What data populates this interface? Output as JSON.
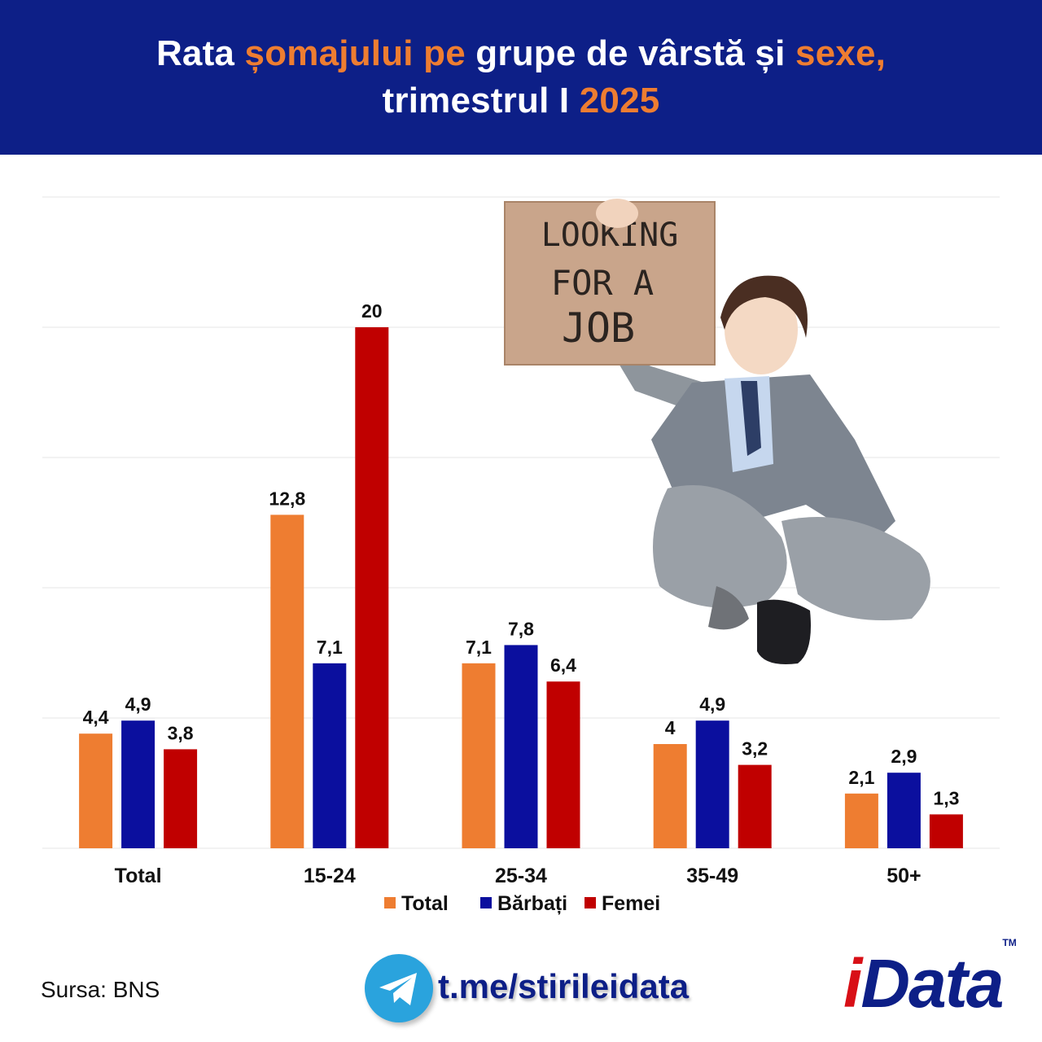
{
  "header": {
    "title_parts": [
      {
        "text": "Rata ",
        "highlight": false
      },
      {
        "text": "șomajului pe",
        "highlight": true
      },
      {
        "text": " grupe de vârstă și ",
        "highlight": false
      },
      {
        "text": "sexe,",
        "highlight": true
      }
    ],
    "title_line2_a": "trimestrul I ",
    "title_line2_b": "2025"
  },
  "colors": {
    "header_bg": "#0d1f87",
    "accent_orange": "#ee7d31",
    "total": "#ee7d31",
    "barbati": "#0b0f9e",
    "femei": "#c00000",
    "grid": "#e6e6e6"
  },
  "chart_data": {
    "type": "bar",
    "categories": [
      "Total",
      "15-24",
      "25-34",
      "35-49",
      "50+"
    ],
    "series": [
      {
        "name": "Total",
        "values": [
          4.4,
          12.8,
          7.1,
          4,
          2.1
        ],
        "labels": [
          "4,4",
          "12,8",
          "7,1",
          "4",
          "2,1"
        ]
      },
      {
        "name": "Bărbați",
        "values": [
          4.9,
          7.1,
          7.8,
          4.9,
          2.9
        ],
        "labels": [
          "4,9",
          "7,1",
          "7,8",
          "4,9",
          "2,9"
        ]
      },
      {
        "name": "Femei",
        "values": [
          3.8,
          20,
          6.4,
          3.2,
          1.3
        ],
        "labels": [
          "3,8",
          "20",
          "6,4",
          "3,2",
          "1,3"
        ]
      }
    ],
    "ylim": [
      0,
      25
    ],
    "grid": true,
    "legend_position": "bottom-center"
  },
  "illustration": {
    "sign_lines": [
      "LOOKING",
      "FOR A",
      "JOB"
    ]
  },
  "footer": {
    "source": "Sursa: BNS",
    "link": "t.me/stirileidata",
    "logo_i": "i",
    "logo_rest": "Data",
    "logo_tm": "TM"
  }
}
